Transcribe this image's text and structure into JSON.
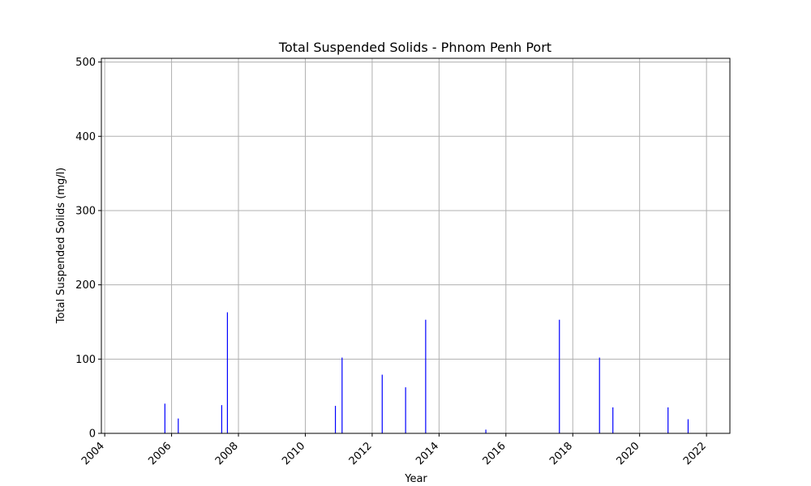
{
  "chart_data": {
    "type": "bar",
    "title": "Total Suspended Solids - Phnom Penh Port",
    "xlabel": "Year",
    "ylabel": "Total Suspended Solids (mg/l)",
    "xlim": [
      2003.9,
      2022.7
    ],
    "ylim": [
      0,
      505
    ],
    "xticks": [
      "2004",
      "2006",
      "2008",
      "2010",
      "2012",
      "2014",
      "2016",
      "2018",
      "2020",
      "2022"
    ],
    "yticks": [
      "0",
      "100",
      "200",
      "300",
      "400",
      "500"
    ],
    "grid": true,
    "bar_color": "#0000ff",
    "x": [
      2005.8,
      2006.2,
      2007.5,
      2007.67,
      2010.9,
      2011.1,
      2012.3,
      2013.0,
      2013.6,
      2015.4,
      2017.6,
      2018.8,
      2019.2,
      2020.85,
      2021.45
    ],
    "values": [
      40,
      20,
      38,
      163,
      37,
      102,
      79,
      62,
      153,
      5,
      153,
      102,
      35,
      35,
      19
    ]
  }
}
